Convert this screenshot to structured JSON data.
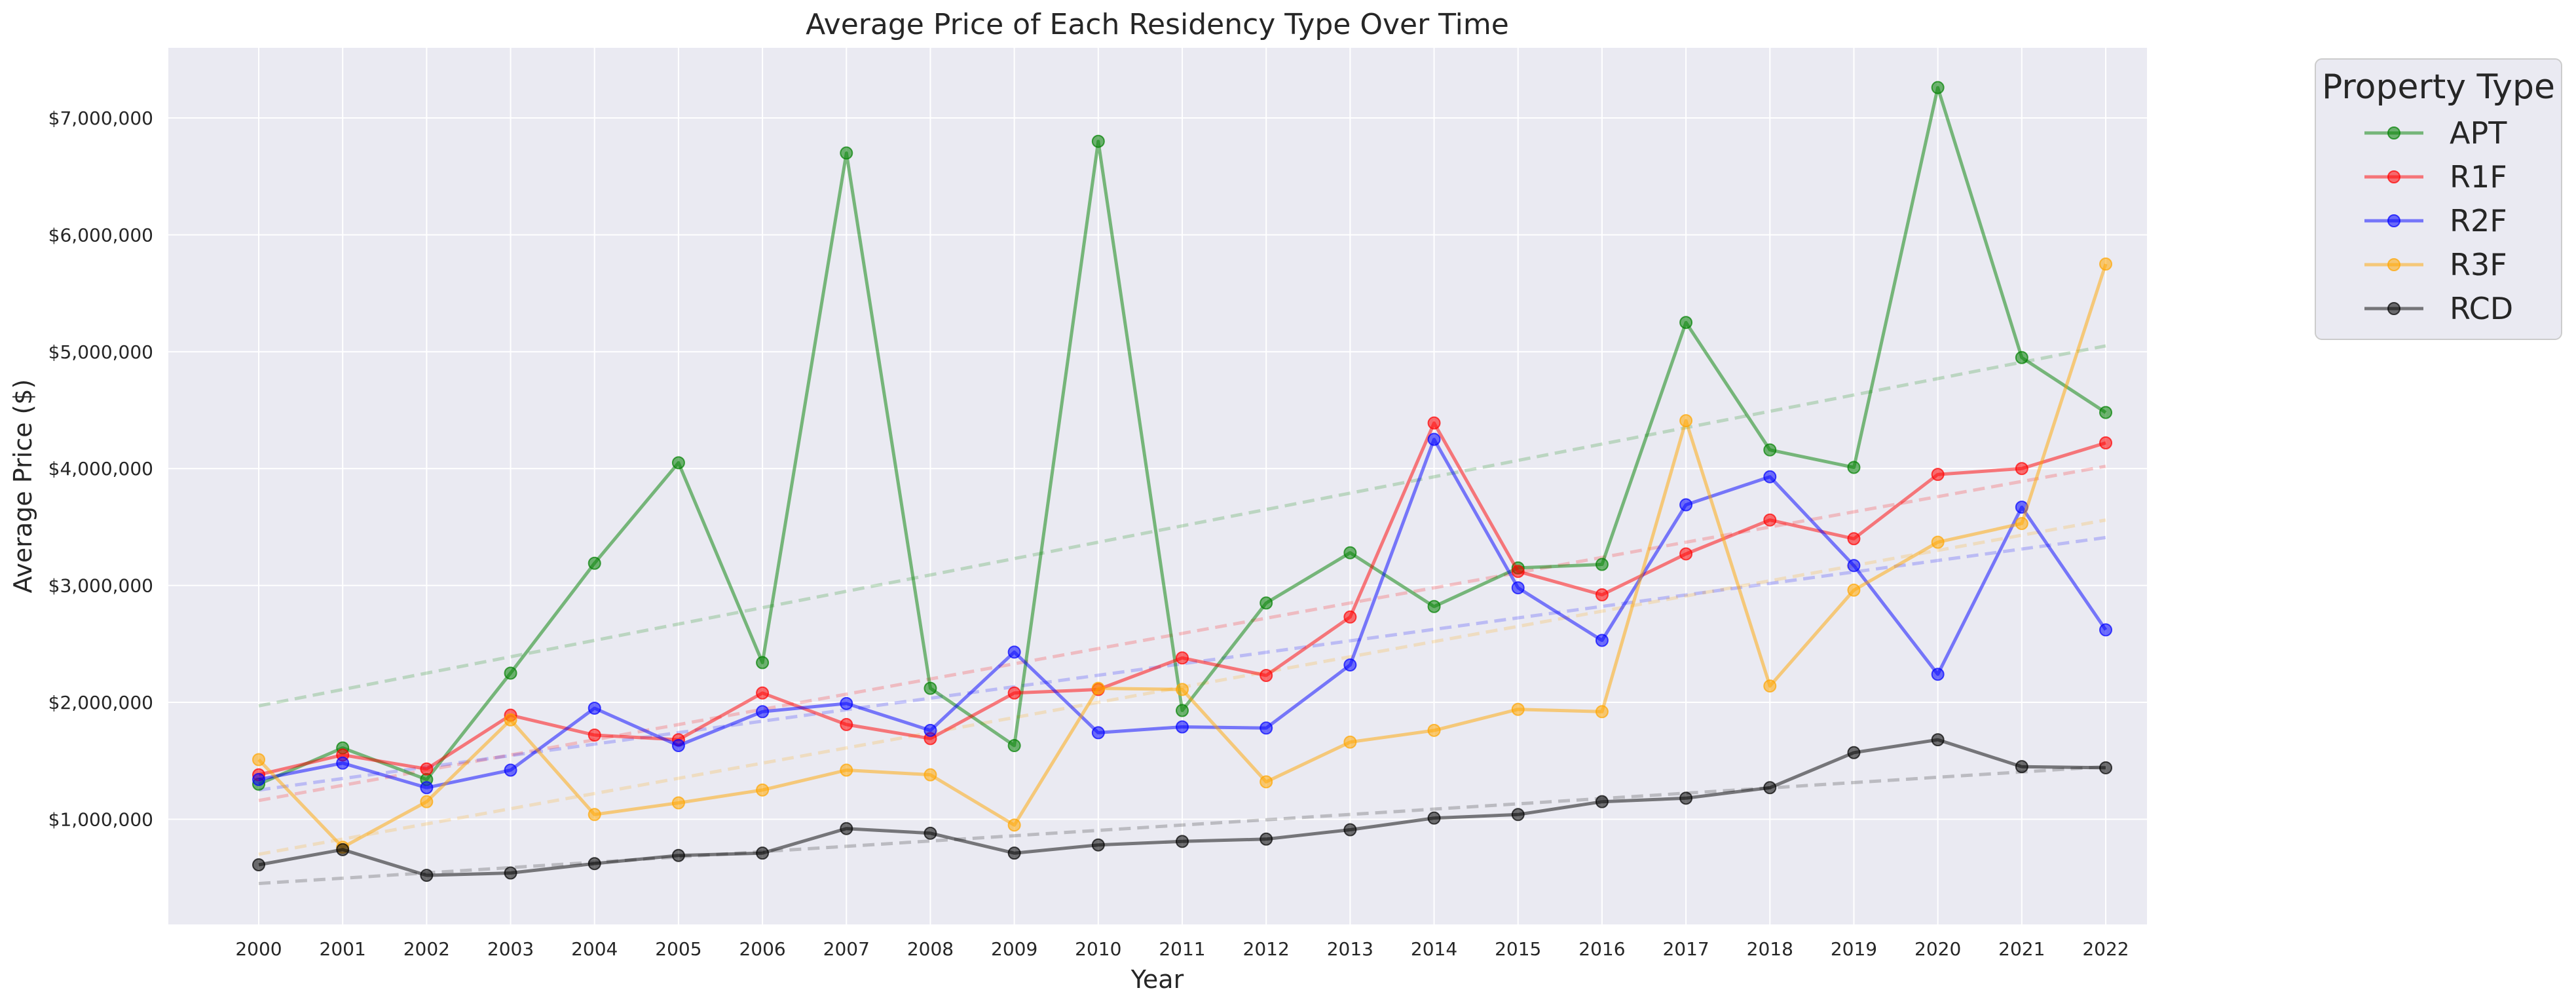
{
  "chart_data": {
    "type": "line",
    "title": "Average Price of Each Residency Type Over Time",
    "xlabel": "Year",
    "ylabel": "Average Price ($)",
    "x": [
      2000,
      2001,
      2002,
      2003,
      2004,
      2005,
      2006,
      2007,
      2008,
      2009,
      2010,
      2011,
      2012,
      2013,
      2014,
      2015,
      2016,
      2017,
      2018,
      2019,
      2020,
      2021,
      2022
    ],
    "x_tick_labels": [
      "2000",
      "2001",
      "2002",
      "2003",
      "2004",
      "2005",
      "2006",
      "2007",
      "2008",
      "2009",
      "2010",
      "2011",
      "2012",
      "2013",
      "2014",
      "2015",
      "2016",
      "2017",
      "2018",
      "2019",
      "2020",
      "2021",
      "2022"
    ],
    "ylim": [
      100000,
      7600000
    ],
    "y_ticks": [
      1000000,
      2000000,
      3000000,
      4000000,
      5000000,
      6000000,
      7000000
    ],
    "y_tick_labels": [
      "$1,000,000",
      "$2,000,000",
      "$3,000,000",
      "$4,000,000",
      "$5,000,000",
      "$6,000,000",
      "$7,000,000"
    ],
    "grid": true,
    "legend": {
      "title": "Property Type",
      "placement": "outside-right-top"
    },
    "trend_lines": "dashed linear fit per series",
    "series": [
      {
        "name": "APT",
        "color": "#008000",
        "values": [
          1300000,
          1610000,
          1340000,
          2250000,
          3190000,
          4050000,
          2340000,
          6700000,
          2120000,
          1630000,
          6800000,
          1930000,
          2850000,
          3280000,
          2820000,
          3150000,
          3180000,
          5250000,
          4160000,
          4010000,
          7260000,
          4950000,
          4480000
        ],
        "trend": [
          1970000,
          5050000
        ]
      },
      {
        "name": "R1F",
        "color": "#ff0000",
        "values": [
          1380000,
          1550000,
          1430000,
          1890000,
          1720000,
          1680000,
          2080000,
          1810000,
          1690000,
          2080000,
          2110000,
          2380000,
          2230000,
          2730000,
          4390000,
          3120000,
          2920000,
          3270000,
          3560000,
          3400000,
          3950000,
          4000000,
          4220000
        ],
        "trend": [
          1160000,
          4020000
        ]
      },
      {
        "name": "R2F",
        "color": "#0000ff",
        "values": [
          1340000,
          1480000,
          1270000,
          1420000,
          1950000,
          1630000,
          1920000,
          1990000,
          1760000,
          2430000,
          1740000,
          1790000,
          1780000,
          2320000,
          4250000,
          2980000,
          2530000,
          3690000,
          3930000,
          3170000,
          2240000,
          3670000,
          2620000
        ],
        "trend": [
          1250000,
          3410000
        ]
      },
      {
        "name": "R3F",
        "color": "#ffa500",
        "values": [
          1510000,
          760000,
          1150000,
          1850000,
          1040000,
          1140000,
          1250000,
          1420000,
          1380000,
          950000,
          2120000,
          2110000,
          1320000,
          1660000,
          1760000,
          1940000,
          1920000,
          4410000,
          2140000,
          2960000,
          3370000,
          3530000,
          5750000
        ],
        "trend": [
          700000,
          3560000
        ]
      },
      {
        "name": "RCD",
        "color": "#000000",
        "values": [
          610000,
          740000,
          520000,
          540000,
          620000,
          690000,
          710000,
          920000,
          880000,
          710000,
          780000,
          810000,
          830000,
          910000,
          1010000,
          1040000,
          1150000,
          1180000,
          1270000,
          1570000,
          1680000,
          1450000,
          1440000
        ],
        "trend": [
          450000,
          1450000
        ]
      }
    ]
  }
}
